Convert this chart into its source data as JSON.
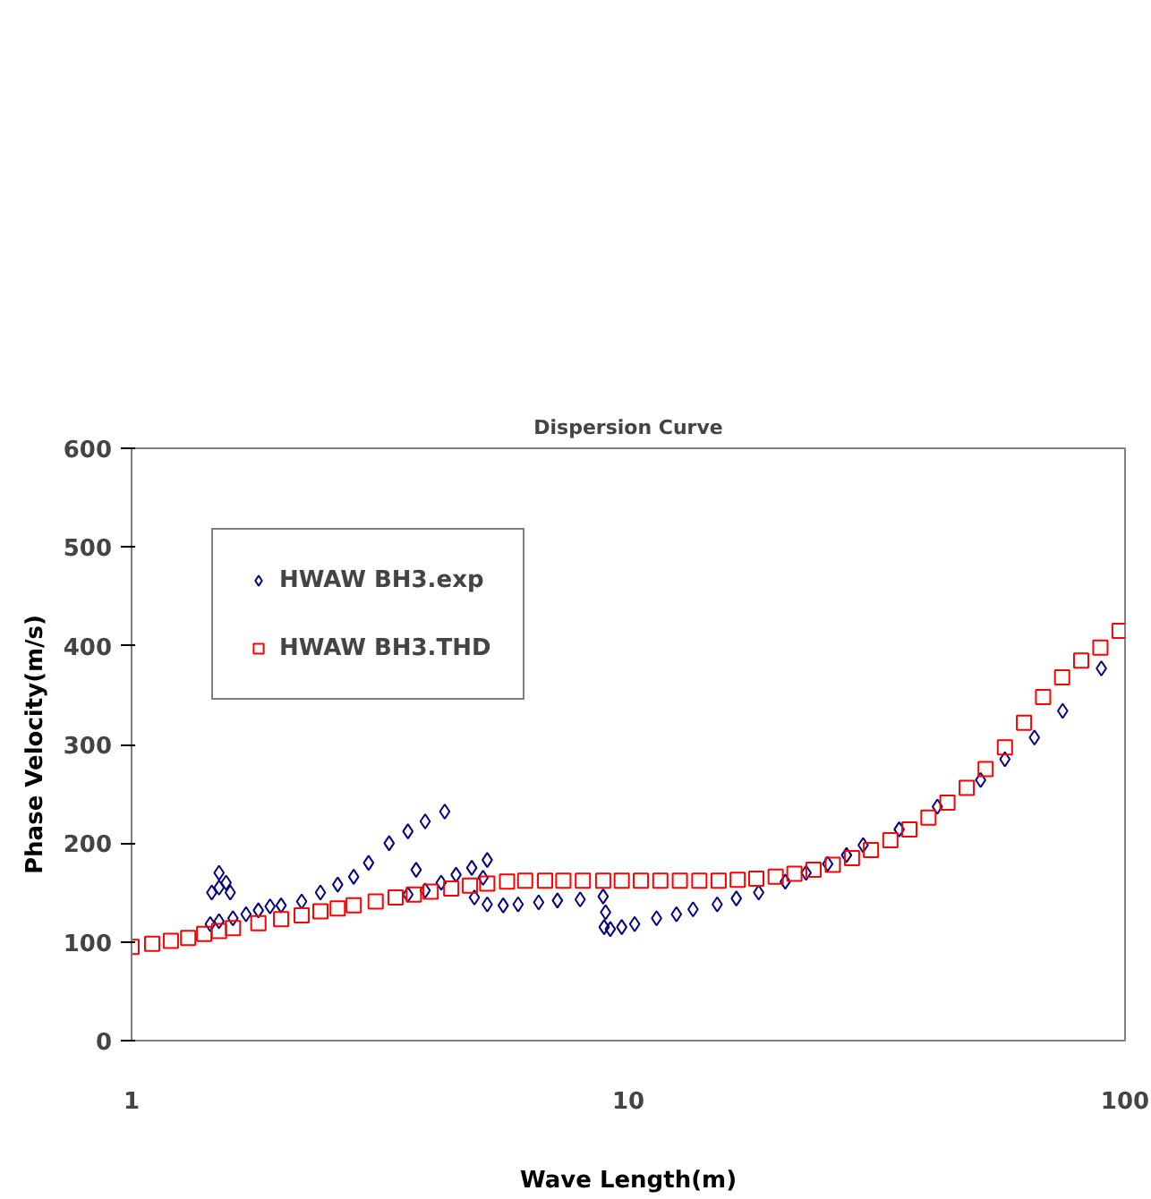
{
  "chart_data": {
    "type": "scatter",
    "title": "Dispersion Curve",
    "xlabel": "Wave Length(m)",
    "ylabel": "Phase Velocity(m/s)",
    "log": "x",
    "xlim": [
      1,
      100
    ],
    "xticks": [
      1,
      10,
      100
    ],
    "ylim": [
      0,
      600
    ],
    "yticks": [
      0,
      100,
      200,
      300,
      400,
      500,
      600
    ],
    "grid": false,
    "legend": "top left",
    "series": [
      {
        "name": "HWAW BH3.exp",
        "color": "#000080",
        "marker": "diamond",
        "x": [
          1.45,
          1.5,
          1.55,
          1.5,
          1.58,
          1.44,
          1.5,
          1.6,
          1.7,
          1.8,
          1.9,
          2.0,
          2.2,
          2.4,
          2.6,
          2.8,
          3.0,
          3.3,
          3.6,
          3.9,
          4.27,
          3.6,
          3.9,
          4.2,
          4.5,
          4.84,
          5.2,
          5.1,
          4.9,
          5.2,
          5.6,
          6.0,
          6.6,
          7.2,
          8.0,
          8.9,
          9.0,
          8.94,
          9.2,
          9.7,
          10.3,
          11.4,
          12.5,
          13.5,
          15.1,
          16.5,
          18.3,
          20.7,
          22.8,
          25.2,
          27.5,
          29.7,
          35.1,
          41.9,
          51.2,
          57.3,
          65.7,
          74.9,
          89.6,
          3.74
        ],
        "values": [
          150,
          155,
          160,
          170,
          150,
          118,
          121,
          124,
          128,
          132,
          136,
          137,
          141,
          150,
          158,
          166,
          180,
          200,
          212,
          222,
          232,
          148,
          152,
          160,
          168,
          175,
          183,
          165,
          145,
          138,
          137,
          138,
          140,
          142,
          143,
          146,
          130,
          115,
          113,
          115,
          118,
          124,
          128,
          133,
          138,
          144,
          150,
          161,
          170,
          179,
          188,
          198,
          214,
          237,
          264,
          285,
          307,
          334,
          377,
          173
        ]
      },
      {
        "name": "HWAW BH3.THD",
        "color": "#ff0000",
        "marker": "square",
        "x": [
          1.0,
          1.1,
          1.2,
          1.3,
          1.4,
          1.5,
          1.6,
          1.8,
          2.0,
          2.2,
          2.4,
          2.6,
          2.8,
          3.1,
          3.4,
          3.7,
          4.0,
          4.4,
          4.8,
          5.2,
          5.7,
          6.2,
          6.8,
          7.4,
          8.1,
          8.9,
          9.7,
          10.6,
          11.6,
          12.7,
          13.9,
          15.2,
          16.6,
          18.1,
          19.8,
          21.6,
          23.6,
          25.8,
          28.2,
          30.8,
          33.7,
          36.8,
          40.2,
          43.9,
          48,
          52.4,
          57.3,
          62.6,
          68.4,
          74.7,
          81.6,
          89.2,
          97.5
        ],
        "values": [
          95,
          98,
          101,
          104,
          108,
          111,
          114,
          119,
          123,
          127,
          131,
          134,
          137,
          141,
          145,
          148,
          151,
          154,
          157,
          159,
          161,
          162,
          162,
          162,
          162,
          162,
          162,
          162,
          162,
          162,
          162,
          162,
          163,
          164,
          166,
          169,
          173,
          178,
          185,
          193,
          203,
          214,
          226,
          241,
          256,
          275,
          297,
          322,
          348,
          368,
          385,
          398,
          415
        ]
      }
    ]
  }
}
